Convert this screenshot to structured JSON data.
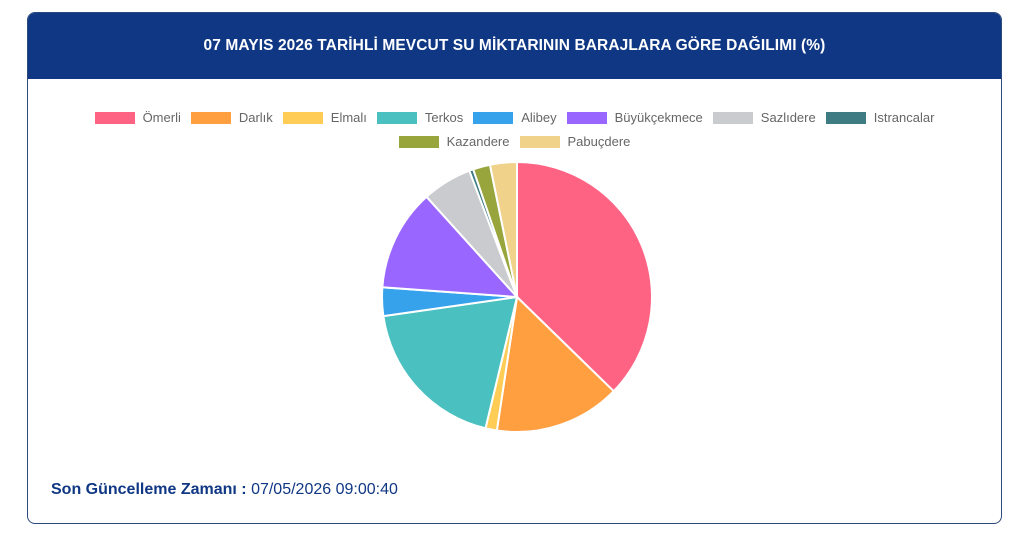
{
  "card": {
    "title": "07 MAYIS 2026 TARİHLİ MEVCUT SU MİKTARININ BARAJLARA GÖRE DAĞILIMI (%)",
    "header_color": "#0f3783"
  },
  "footer": {
    "label": "Son Güncelleme Zamanı :",
    "value": "07/05/2026 09:00:40"
  },
  "chart_data": {
    "type": "pie",
    "title": "07 MAYIS 2026 TARİHLİ MEVCUT SU MİKTARININ BARAJLARA GÖRE DAĞILIMI (%)",
    "legend_position": "top",
    "labels": [
      "Ömerli",
      "Darlık",
      "Elmalı",
      "Terkos",
      "Alibey",
      "Büyükçekmece",
      "Sazlıdere",
      "Istrancalar",
      "Kazandere",
      "Pabuçdere"
    ],
    "values": [
      38.3,
      15.5,
      1.4,
      19.5,
      3.5,
      12.5,
      6.1,
      0.5,
      2.1,
      3.3
    ],
    "colors": [
      "#ff6384",
      "#ff9f40",
      "#ffcd56",
      "#4bc0c0",
      "#36a2eb",
      "#9966ff",
      "#c9cbcf",
      "#3e7b83",
      "#97a53c",
      "#f0d28a"
    ]
  }
}
